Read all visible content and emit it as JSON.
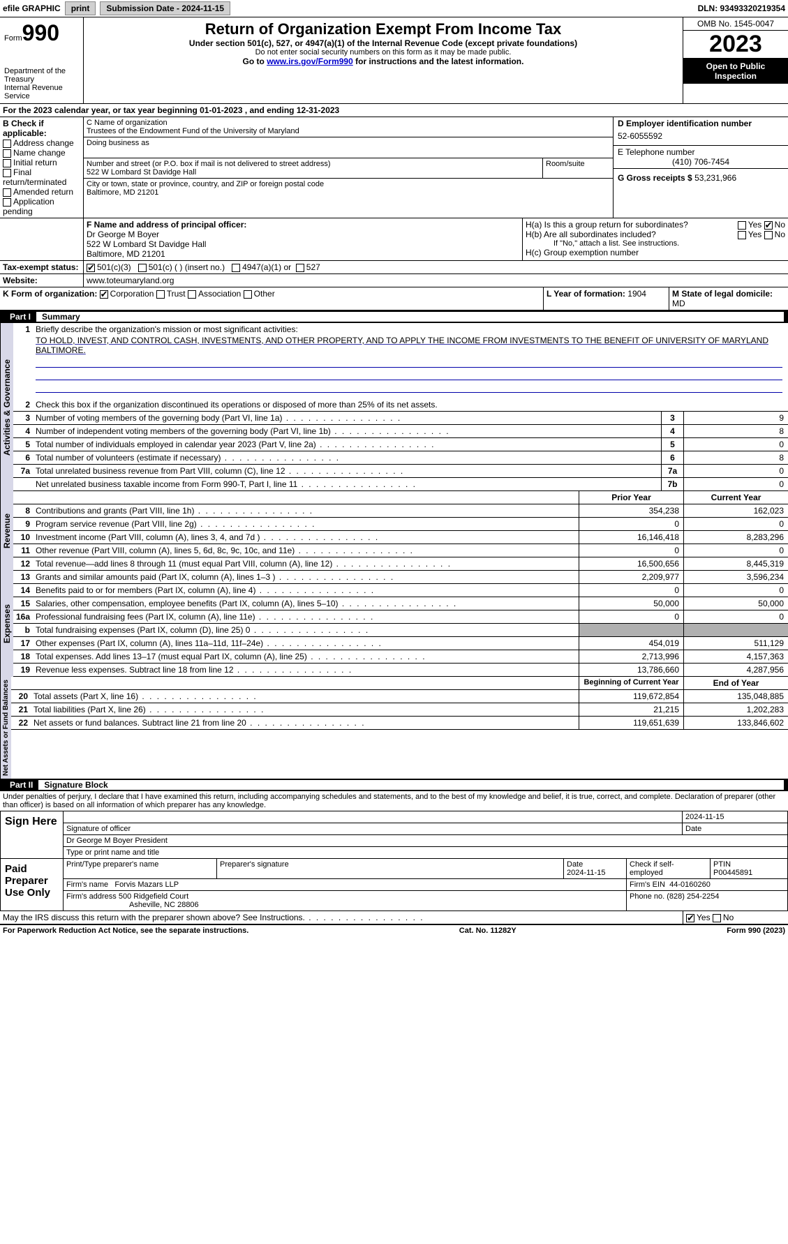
{
  "topbar": {
    "efile": "efile GRAPHIC",
    "print": "print",
    "submission_label": "Submission Date - 2024-11-15",
    "dln_label": "DLN: 93493320219354"
  },
  "header": {
    "form_label": "Form",
    "form_number": "990",
    "dept": "Department of the Treasury\nInternal Revenue Service",
    "title": "Return of Organization Exempt From Income Tax",
    "subtitle": "Under section 501(c), 527, or 4947(a)(1) of the Internal Revenue Code (except private foundations)",
    "warn": "Do not enter social security numbers on this form as it may be made public.",
    "goto": "Go to www.irs.gov/Form990 for instructions and the latest information.",
    "omb": "OMB No. 1545-0047",
    "year": "2023",
    "open": "Open to Public Inspection"
  },
  "sectionA": {
    "text": "For the 2023 calendar year, or tax year beginning 01-01-2023   , and ending 12-31-2023"
  },
  "sectionB": {
    "label": "B Check if applicable:",
    "opts": [
      "Address change",
      "Name change",
      "Initial return",
      "Final return/terminated",
      "Amended return",
      "Application pending"
    ]
  },
  "sectionC": {
    "name_label": "C Name of organization",
    "name": "Trustees of the Endowment Fund of the University of Maryland",
    "dba_label": "Doing business as",
    "street_label": "Number and street (or P.O. box if mail is not delivered to street address)",
    "street": "522 W Lombard St Davidge Hall",
    "room_label": "Room/suite",
    "city_label": "City or town, state or province, country, and ZIP or foreign postal code",
    "city": "Baltimore, MD  21201"
  },
  "sectionD": {
    "label": "D Employer identification number",
    "value": "52-6055592"
  },
  "sectionE": {
    "label": "E Telephone number",
    "value": "(410) 706-7454"
  },
  "sectionG": {
    "label": "G Gross receipts $",
    "value": "53,231,966"
  },
  "sectionF": {
    "label": "F  Name and address of principal officer:",
    "name": "Dr George M Boyer",
    "street": "522 W Lombard St Davidge Hall",
    "city": "Baltimore, MD  21201"
  },
  "sectionH": {
    "a": "H(a)  Is this a group return for subordinates?",
    "b": "H(b)  Are all subordinates included?",
    "b_note": "If \"No,\" attach a list. See instructions.",
    "c": "H(c)  Group exemption number"
  },
  "sectionI": {
    "label": "Tax-exempt status:",
    "c3": "501(c)(3)",
    "c": "501(c) (  ) (insert no.)",
    "a1": "4947(a)(1) or",
    "s527": "527"
  },
  "sectionJ": {
    "label": "Website:",
    "value": "www.toteumaryland.org"
  },
  "sectionK": {
    "label": "K Form of organization:",
    "corp": "Corporation",
    "trust": "Trust",
    "assoc": "Association",
    "other": "Other"
  },
  "sectionL": {
    "label": "L Year of formation:",
    "value": "1904"
  },
  "sectionM": {
    "label": "M State of legal domicile:",
    "value": "MD"
  },
  "part1": {
    "title": "Part I",
    "subtitle": "Summary",
    "line1_label": "Briefly describe the organization's mission or most significant activities:",
    "line1_text": "TO HOLD, INVEST, AND CONTROL CASH, INVESTMENTS, AND OTHER PROPERTY, AND TO APPLY THE INCOME FROM INVESTMENTS TO THE BENEFIT OF UNIVERSITY OF MARYLAND BALTIMORE.",
    "line2": "Check this box      if the organization discontinued its operations or disposed of more than 25% of its net assets.",
    "vlabel_gov": "Activities & Governance",
    "vlabel_rev": "Revenue",
    "vlabel_exp": "Expenses",
    "vlabel_net": "Net Assets or Fund Balances",
    "lines_gov": [
      {
        "n": "3",
        "desc": "Number of voting members of the governing body (Part VI, line 1a)",
        "box": "3",
        "val": "9"
      },
      {
        "n": "4",
        "desc": "Number of independent voting members of the governing body (Part VI, line 1b)",
        "box": "4",
        "val": "8"
      },
      {
        "n": "5",
        "desc": "Total number of individuals employed in calendar year 2023 (Part V, line 2a)",
        "box": "5",
        "val": "0"
      },
      {
        "n": "6",
        "desc": "Total number of volunteers (estimate if necessary)",
        "box": "6",
        "val": "8"
      },
      {
        "n": "7a",
        "desc": "Total unrelated business revenue from Part VIII, column (C), line 12",
        "box": "7a",
        "val": "0"
      },
      {
        "n": "",
        "desc": "Net unrelated business taxable income from Form 990-T, Part I, line 11",
        "box": "7b",
        "val": "0"
      }
    ],
    "prior_year": "Prior Year",
    "current_year": "Current Year",
    "lines_rev": [
      {
        "n": "8",
        "desc": "Contributions and grants (Part VIII, line 1h)",
        "prior": "354,238",
        "curr": "162,023"
      },
      {
        "n": "9",
        "desc": "Program service revenue (Part VIII, line 2g)",
        "prior": "0",
        "curr": "0"
      },
      {
        "n": "10",
        "desc": "Investment income (Part VIII, column (A), lines 3, 4, and 7d )",
        "prior": "16,146,418",
        "curr": "8,283,296"
      },
      {
        "n": "11",
        "desc": "Other revenue (Part VIII, column (A), lines 5, 6d, 8c, 9c, 10c, and 11e)",
        "prior": "0",
        "curr": "0"
      },
      {
        "n": "12",
        "desc": "Total revenue—add lines 8 through 11 (must equal Part VIII, column (A), line 12)",
        "prior": "16,500,656",
        "curr": "8,445,319"
      }
    ],
    "lines_exp": [
      {
        "n": "13",
        "desc": "Grants and similar amounts paid (Part IX, column (A), lines 1–3 )",
        "prior": "2,209,977",
        "curr": "3,596,234"
      },
      {
        "n": "14",
        "desc": "Benefits paid to or for members (Part IX, column (A), line 4)",
        "prior": "0",
        "curr": "0"
      },
      {
        "n": "15",
        "desc": "Salaries, other compensation, employee benefits (Part IX, column (A), lines 5–10)",
        "prior": "50,000",
        "curr": "50,000"
      },
      {
        "n": "16a",
        "desc": "Professional fundraising fees (Part IX, column (A), line 11e)",
        "prior": "0",
        "curr": "0"
      },
      {
        "n": "b",
        "desc": "Total fundraising expenses (Part IX, column (D), line 25) 0",
        "prior": "",
        "curr": "",
        "shaded": true
      },
      {
        "n": "17",
        "desc": "Other expenses (Part IX, column (A), lines 11a–11d, 11f–24e)",
        "prior": "454,019",
        "curr": "511,129"
      },
      {
        "n": "18",
        "desc": "Total expenses. Add lines 13–17 (must equal Part IX, column (A), line 25)",
        "prior": "2,713,996",
        "curr": "4,157,363"
      },
      {
        "n": "19",
        "desc": "Revenue less expenses. Subtract line 18 from line 12",
        "prior": "13,786,660",
        "curr": "4,287,956"
      }
    ],
    "begin_year": "Beginning of Current Year",
    "end_year": "End of Year",
    "lines_net": [
      {
        "n": "20",
        "desc": "Total assets (Part X, line 16)",
        "prior": "119,672,854",
        "curr": "135,048,885"
      },
      {
        "n": "21",
        "desc": "Total liabilities (Part X, line 26)",
        "prior": "21,215",
        "curr": "1,202,283"
      },
      {
        "n": "22",
        "desc": "Net assets or fund balances. Subtract line 21 from line 20",
        "prior": "119,651,639",
        "curr": "133,846,602"
      }
    ]
  },
  "part2": {
    "title": "Part II",
    "subtitle": "Signature Block",
    "declaration": "Under penalties of perjury, I declare that I have examined this return, including accompanying schedules and statements, and to the best of my knowledge and belief, it is true, correct, and complete. Declaration of preparer (other than officer) is based on all information of which preparer has any knowledge.",
    "sign_here": "Sign Here",
    "sig_date": "2024-11-15",
    "sig_officer_label": "Signature of officer",
    "officer_name": "Dr George M Boyer  President",
    "type_name_label": "Type or print name and title",
    "date_label": "Date",
    "paid_prep": "Paid Preparer Use Only",
    "prep_name_label": "Print/Type preparer's name",
    "prep_sig_label": "Preparer's signature",
    "prep_date": "2024-11-15",
    "check_self": "Check        if self-employed",
    "ptin_label": "PTIN",
    "ptin": "P00445891",
    "firm_name_label": "Firm's name",
    "firm_name": "Forvis Mazars LLP",
    "firm_ein_label": "Firm's EIN",
    "firm_ein": "44-0160260",
    "firm_addr_label": "Firm's address",
    "firm_addr1": "500 Ridgefield Court",
    "firm_addr2": "Asheville, NC  28806",
    "phone_label": "Phone no.",
    "phone": "(828) 254-2254",
    "discuss": "May the IRS discuss this return with the preparer shown above? See Instructions."
  },
  "footer": {
    "paperwork": "For Paperwork Reduction Act Notice, see the separate instructions.",
    "cat": "Cat. No. 11282Y",
    "form": "Form 990 (2023)"
  }
}
